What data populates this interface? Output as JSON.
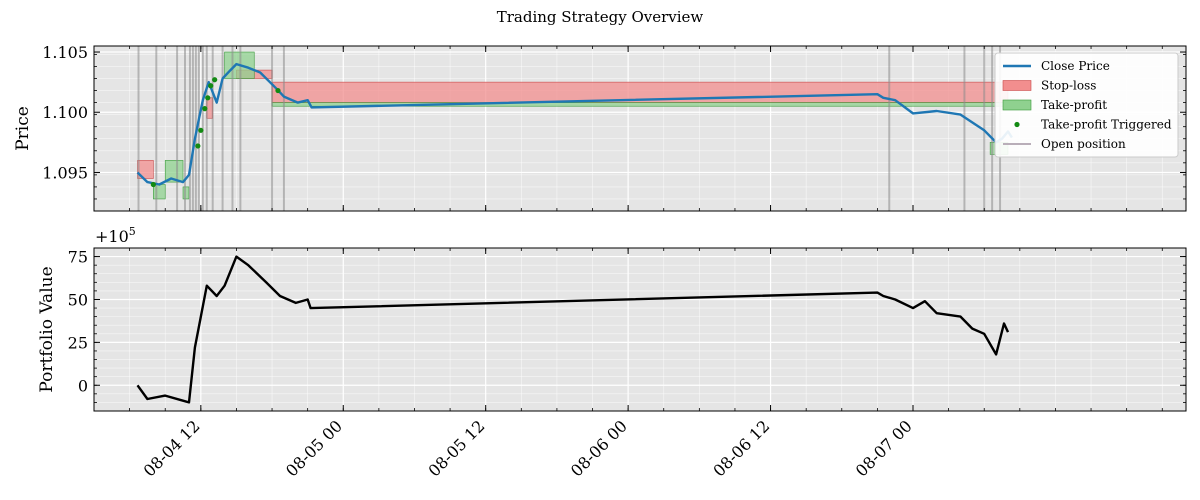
{
  "chart_data": {
    "title": "Trading Strategy Overview",
    "colors": {
      "close_price": "#1f77b4",
      "stop_loss": "#f28e8e",
      "take_profit": "#8fd18f",
      "trigger": "#138a13",
      "open_position": "#b9aeb9",
      "portfolio": "#000000",
      "panel_bg": "#e5e5e5",
      "grid": "#ffffff"
    },
    "x_range": [
      "2024-08-04 03:00",
      "2024-08-07 23:00"
    ],
    "x_ticks": [
      "08-04 12",
      "08-05 00",
      "08-05 12",
      "08-06 00",
      "08-06 12",
      "08-07 00"
    ],
    "panels": [
      {
        "type": "line",
        "ylabel": "Price",
        "ylim": [
          1.0918,
          1.1055
        ],
        "y_ticks": [
          "1.095",
          "1.100",
          "1.105"
        ],
        "y_tick_values": [
          1.095,
          1.1,
          1.105
        ],
        "legend": {
          "placement": "top-right",
          "entries": [
            "Close Price",
            "Stop-loss",
            "Take-profit",
            "Take-profit Triggered",
            "Open position"
          ]
        },
        "series": [
          {
            "name": "Close Price",
            "points": [
              [
                "2024-08-04 06:40",
                1.095
              ],
              [
                "2024-08-04 07:30",
                1.0942
              ],
              [
                "2024-08-04 08:30",
                1.094
              ],
              [
                "2024-08-04 09:30",
                1.0945
              ],
              [
                "2024-08-04 10:30",
                1.0942
              ],
              [
                "2024-08-04 11:00",
                1.0948
              ],
              [
                "2024-08-04 11:30",
                1.0978
              ],
              [
                "2024-08-04 12:10",
                1.101
              ],
              [
                "2024-08-04 12:40",
                1.1025
              ],
              [
                "2024-08-04 13:20",
                1.1008
              ],
              [
                "2024-08-04 13:50",
                1.1028
              ],
              [
                "2024-08-04 14:30",
                1.1035
              ],
              [
                "2024-08-04 15:00",
                1.104
              ],
              [
                "2024-08-04 16:00",
                1.1037
              ],
              [
                "2024-08-04 17:00",
                1.1033
              ],
              [
                "2024-08-04 18:20",
                1.102
              ],
              [
                "2024-08-04 19:00",
                1.1013
              ],
              [
                "2024-08-04 20:10",
                1.1008
              ],
              [
                "2024-08-04 21:00",
                1.101
              ],
              [
                "2024-08-04 21:20",
                1.1004
              ],
              [
                "2024-08-06 21:00",
                1.1015
              ],
              [
                "2024-08-06 21:30",
                1.1012
              ],
              [
                "2024-08-06 22:30",
                1.101
              ],
              [
                "2024-08-07 00:00",
                1.0999
              ],
              [
                "2024-08-07 02:00",
                1.1001
              ],
              [
                "2024-08-07 04:00",
                1.0998
              ],
              [
                "2024-08-07 06:00",
                1.0985
              ],
              [
                "2024-08-07 07:00",
                1.0975
              ],
              [
                "2024-08-07 07:30",
                1.0978
              ],
              [
                "2024-08-07 08:00",
                1.0984
              ],
              [
                "2024-08-07 08:20",
                1.0979
              ]
            ]
          },
          {
            "name": "Stop-loss",
            "bands": [
              [
                "2024-08-04 06:40",
                "2024-08-04 08:00",
                1.0945,
                1.096
              ],
              [
                "2024-08-04 12:30",
                "2024-08-04 13:00",
                1.0995,
                1.1012
              ],
              [
                "2024-08-04 15:00",
                "2024-08-04 18:00",
                1.1028,
                1.1035
              ],
              [
                "2024-08-04 18:00",
                "2024-08-07 08:00",
                1.1008,
                1.1025
              ]
            ]
          },
          {
            "name": "Take-profit",
            "bands": [
              [
                "2024-08-04 08:00",
                "2024-08-04 09:00",
                1.0928,
                1.094
              ],
              [
                "2024-08-04 09:00",
                "2024-08-04 10:30",
                1.0942,
                1.096
              ],
              [
                "2024-08-04 10:30",
                "2024-08-04 11:00",
                1.0928,
                1.0938
              ],
              [
                "2024-08-04 14:00",
                "2024-08-04 16:30",
                1.1028,
                1.105
              ],
              [
                "2024-08-04 18:00",
                "2024-08-07 08:00",
                1.1005,
                1.1008
              ],
              [
                "2024-08-07 06:30",
                "2024-08-07 08:00",
                1.0965,
                1.0975
              ]
            ]
          },
          {
            "name": "Take-profit Triggered",
            "markers": [
              [
                "2024-08-04 08:00",
                1.094
              ],
              [
                "2024-08-04 11:45",
                1.0972
              ],
              [
                "2024-08-04 12:00",
                1.0985
              ],
              [
                "2024-08-04 12:20",
                1.1003
              ],
              [
                "2024-08-04 12:35",
                1.1012
              ],
              [
                "2024-08-04 12:50",
                1.1022
              ],
              [
                "2024-08-04 13:10",
                1.1027
              ],
              [
                "2024-08-04 18:30",
                1.1018
              ]
            ]
          },
          {
            "name": "Open position",
            "vlines": [
              "2024-08-04 06:45",
              "2024-08-04 08:15",
              "2024-08-04 10:00",
              "2024-08-04 10:40",
              "2024-08-04 11:05",
              "2024-08-04 11:20",
              "2024-08-04 11:35",
              "2024-08-04 11:50",
              "2024-08-04 12:10",
              "2024-08-04 12:30",
              "2024-08-04 13:00",
              "2024-08-04 13:50",
              "2024-08-04 14:40",
              "2024-08-04 15:20",
              "2024-08-04 18:00",
              "2024-08-04 19:00",
              "2024-08-06 22:00",
              "2024-08-07 04:20",
              "2024-08-07 06:00",
              "2024-08-07 06:40",
              "2024-08-07 07:20"
            ]
          }
        ]
      },
      {
        "type": "line",
        "ylabel": "Portfolio Value",
        "offset_label": "+10",
        "offset_exponent": "5",
        "ylim": [
          -15,
          80
        ],
        "y_ticks": [
          "0",
          "25",
          "50",
          "75"
        ],
        "y_tick_values": [
          0,
          25,
          50,
          75
        ],
        "series": [
          {
            "name": "Portfolio Value",
            "points": [
              [
                "2024-08-04 06:40",
                0
              ],
              [
                "2024-08-04 07:30",
                -8
              ],
              [
                "2024-08-04 09:00",
                -6
              ],
              [
                "2024-08-04 10:30",
                -9
              ],
              [
                "2024-08-04 11:00",
                -10
              ],
              [
                "2024-08-04 11:30",
                22
              ],
              [
                "2024-08-04 12:30",
                58
              ],
              [
                "2024-08-04 13:20",
                52
              ],
              [
                "2024-08-04 14:00",
                58
              ],
              [
                "2024-08-04 15:00",
                75
              ],
              [
                "2024-08-04 16:00",
                70
              ],
              [
                "2024-08-04 17:30",
                60
              ],
              [
                "2024-08-04 18:40",
                52
              ],
              [
                "2024-08-04 20:00",
                48
              ],
              [
                "2024-08-04 21:00",
                50
              ],
              [
                "2024-08-04 21:15",
                45
              ],
              [
                "2024-08-06 21:00",
                54
              ],
              [
                "2024-08-06 21:30",
                52
              ],
              [
                "2024-08-06 22:30",
                50
              ],
              [
                "2024-08-07 00:00",
                45
              ],
              [
                "2024-08-07 01:00",
                49
              ],
              [
                "2024-08-07 02:00",
                42
              ],
              [
                "2024-08-07 04:00",
                40
              ],
              [
                "2024-08-07 05:00",
                33
              ],
              [
                "2024-08-07 06:00",
                30
              ],
              [
                "2024-08-07 07:00",
                18
              ],
              [
                "2024-08-07 07:40",
                36
              ],
              [
                "2024-08-07 08:00",
                31
              ]
            ]
          }
        ]
      }
    ]
  }
}
